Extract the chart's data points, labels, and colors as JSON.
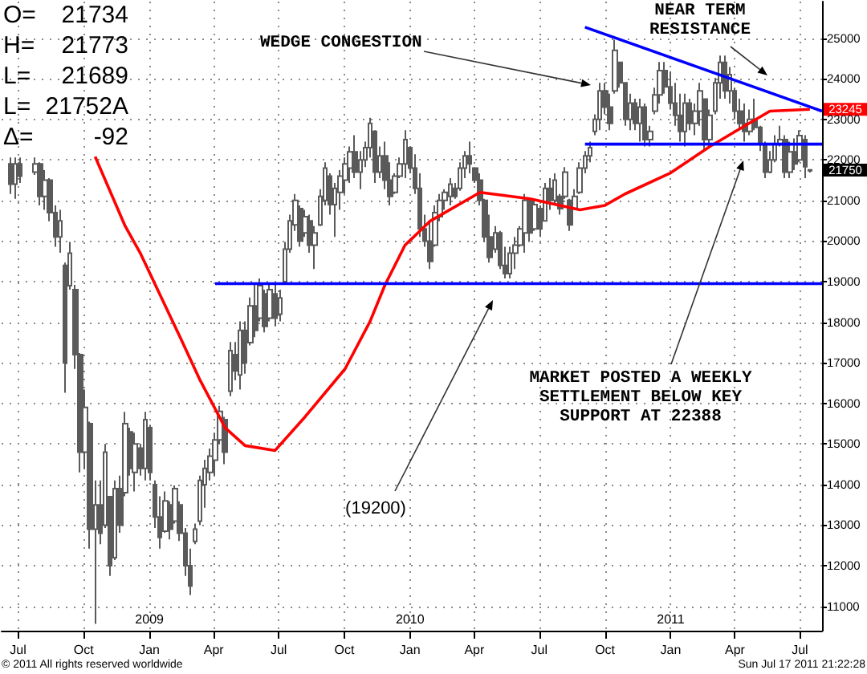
{
  "chart_data": {
    "type": "candlestick",
    "color": "#5a5a5a",
    "x": [
      "2008-06-20",
      "2008-06-27",
      "2008-07-04",
      "2008-07-25",
      "2008-08-01",
      "2008-08-08",
      "2008-08-15",
      "2008-08-22",
      "2008-08-29",
      "2008-09-05",
      "2008-09-12",
      "2008-09-19",
      "2008-09-26",
      "2008-10-03",
      "2008-10-10",
      "2008-10-17",
      "2008-10-24",
      "2008-10-31",
      "2008-11-07",
      "2008-11-14",
      "2008-11-21",
      "2008-11-28",
      "2008-12-05",
      "2008-12-12",
      "2008-12-19",
      "2008-12-26",
      "2009-01-02",
      "2009-01-09",
      "2009-01-16",
      "2009-01-23",
      "2009-01-30",
      "2009-02-06",
      "2009-02-13",
      "2009-02-20",
      "2009-02-27",
      "2009-03-06",
      "2009-03-13",
      "2009-03-20",
      "2009-03-27",
      "2009-04-03",
      "2009-04-10",
      "2009-04-17",
      "2009-04-24",
      "2009-05-01",
      "2009-05-08",
      "2009-05-15",
      "2009-05-22",
      "2009-05-29",
      "2009-06-05",
      "2009-06-12",
      "2009-06-19",
      "2009-06-26",
      "2009-07-03",
      "2009-07-10",
      "2009-07-17",
      "2009-07-24",
      "2009-07-31",
      "2009-08-07",
      "2009-08-14",
      "2009-08-21",
      "2009-08-28",
      "2009-09-04",
      "2009-09-11",
      "2009-09-18",
      "2009-09-25",
      "2009-10-02",
      "2009-10-09",
      "2009-10-16",
      "2009-10-23",
      "2009-10-30",
      "2009-11-06",
      "2009-11-13",
      "2009-11-20",
      "2009-11-27",
      "2009-12-04",
      "2009-12-11",
      "2009-12-18",
      "2009-12-25",
      "2010-01-01",
      "2010-01-08",
      "2010-01-15",
      "2010-01-22",
      "2010-01-29",
      "2010-02-05",
      "2010-02-12",
      "2010-02-19",
      "2010-02-26",
      "2010-03-05",
      "2010-03-12",
      "2010-03-19",
      "2010-03-26",
      "2010-04-02",
      "2010-04-09",
      "2010-04-16",
      "2010-04-23",
      "2010-04-30",
      "2010-05-07",
      "2010-05-14",
      "2010-05-21",
      "2010-05-28",
      "2010-06-04",
      "2010-06-11",
      "2010-06-18",
      "2010-06-25",
      "2010-07-02",
      "2010-07-09",
      "2010-07-16",
      "2010-07-23",
      "2010-07-30",
      "2010-08-06",
      "2010-08-13",
      "2010-08-20",
      "2010-08-27",
      "2010-09-03",
      "2010-09-10",
      "2010-09-17",
      "2010-09-24",
      "2010-10-01",
      "2010-10-08",
      "2010-10-15",
      "2010-10-22",
      "2010-10-29",
      "2010-11-05",
      "2010-11-12",
      "2010-11-19",
      "2010-11-26",
      "2010-12-03",
      "2010-12-10",
      "2010-12-17",
      "2010-12-24",
      "2010-12-31",
      "2011-01-07",
      "2011-01-14",
      "2011-01-21",
      "2011-01-28",
      "2011-02-04",
      "2011-02-11",
      "2011-02-18",
      "2011-02-25",
      "2011-03-04",
      "2011-03-11",
      "2011-03-18",
      "2011-03-25",
      "2011-04-01",
      "2011-04-08",
      "2011-04-15",
      "2011-04-22",
      "2011-04-29",
      "2011-05-06",
      "2011-05-13",
      "2011-05-20",
      "2011-05-27",
      "2011-06-03",
      "2011-06-10",
      "2011-06-17",
      "2011-06-24",
      "2011-07-01",
      "2011-07-08",
      "2011-07-15"
    ],
    "ohlc": [
      [
        21900,
        22060,
        21160,
        21400
      ],
      [
        21400,
        22060,
        21040,
        21900
      ],
      [
        21900,
        22060,
        21430,
        21600
      ],
      [
        21700,
        22060,
        21630,
        21900
      ],
      [
        21900,
        21940,
        20880,
        21100
      ],
      [
        21100,
        21750,
        20770,
        21500
      ],
      [
        21500,
        21550,
        20490,
        20700
      ],
      [
        20700,
        20880,
        19860,
        20100
      ],
      [
        20100,
        20770,
        19710,
        20500
      ],
      [
        19400,
        19470,
        16260,
        17000
      ],
      [
        18900,
        19980,
        18800,
        19700
      ],
      [
        18800,
        18920,
        16850,
        17200
      ],
      [
        17200,
        17240,
        14300,
        14800
      ],
      [
        14800,
        16340,
        14380,
        15900
      ],
      [
        15500,
        15550,
        12420,
        12900
      ],
      [
        12900,
        14100,
        10570,
        13500
      ],
      [
        13500,
        14100,
        12530,
        12800
      ],
      [
        13000,
        15000,
        12930,
        14800
      ],
      [
        13700,
        13710,
        11750,
        12000
      ],
      [
        12200,
        14100,
        12140,
        13900
      ],
      [
        13900,
        14220,
        12810,
        13000
      ],
      [
        13800,
        15790,
        13710,
        15500
      ],
      [
        15300,
        15400,
        14220,
        14400
      ],
      [
        14300,
        15280,
        13830,
        15000
      ],
      [
        14900,
        15000,
        14220,
        14400
      ],
      [
        14400,
        15790,
        14100,
        15600
      ],
      [
        15400,
        15470,
        14100,
        14300
      ],
      [
        14000,
        14100,
        12930,
        13200
      ],
      [
        13200,
        13710,
        12420,
        12700
      ],
      [
        12850,
        13830,
        12810,
        13600
      ],
      [
        13500,
        13590,
        12650,
        12900
      ],
      [
        13100,
        13980,
        13040,
        13900
      ],
      [
        13500,
        13590,
        12610,
        12800
      ],
      [
        12800,
        12930,
        11750,
        12000
      ],
      [
        12000,
        12420,
        11280,
        11500
      ],
      [
        12600,
        13040,
        12530,
        12900
      ],
      [
        13100,
        14220,
        13000,
        14100
      ],
      [
        14000,
        14610,
        13430,
        14400
      ],
      [
        14300,
        14890,
        14100,
        14700
      ],
      [
        14600,
        15280,
        14220,
        15100
      ],
      [
        15100,
        15940,
        15000,
        15800
      ],
      [
        15600,
        15670,
        14500,
        14800
      ],
      [
        16300,
        17510,
        16180,
        17300
      ],
      [
        17200,
        17510,
        16570,
        16800
      ],
      [
        16700,
        18020,
        16340,
        17800
      ],
      [
        17800,
        18020,
        16730,
        17000
      ],
      [
        17500,
        18610,
        17430,
        18400
      ],
      [
        18400,
        18920,
        17630,
        17800
      ],
      [
        18100,
        19080,
        18020,
        18900
      ],
      [
        18700,
        18800,
        17750,
        17900
      ],
      [
        18100,
        18920,
        18020,
        18800
      ],
      [
        18700,
        18920,
        17900,
        18100
      ],
      [
        18200,
        18800,
        18020,
        18600
      ],
      [
        19000,
        19980,
        18920,
        19800
      ],
      [
        19800,
        20650,
        19710,
        20500
      ],
      [
        20400,
        21160,
        20250,
        21000
      ],
      [
        20800,
        20880,
        19860,
        20000
      ],
      [
        20200,
        20770,
        20100,
        20600
      ],
      [
        20500,
        20650,
        19710,
        19900
      ],
      [
        19900,
        20370,
        19310,
        20200
      ],
      [
        20400,
        21280,
        20370,
        21100
      ],
      [
        21000,
        21940,
        20880,
        21800
      ],
      [
        21600,
        21670,
        20650,
        20900
      ],
      [
        20900,
        21430,
        20100,
        21300
      ],
      [
        21200,
        21750,
        20770,
        21600
      ],
      [
        21500,
        22060,
        21160,
        21900
      ],
      [
        21800,
        22330,
        21430,
        22200
      ],
      [
        22200,
        22610,
        21550,
        21700
      ],
      [
        21700,
        22220,
        21280,
        22000
      ],
      [
        22000,
        22450,
        21820,
        22300
      ],
      [
        22300,
        23040,
        22060,
        22900
      ],
      [
        22700,
        22730,
        21430,
        21700
      ],
      [
        21700,
        22330,
        21550,
        22100
      ],
      [
        22100,
        22450,
        21280,
        21500
      ],
      [
        21500,
        21940,
        20880,
        21100
      ],
      [
        21200,
        21670,
        21160,
        21600
      ],
      [
        21600,
        22060,
        21550,
        21900
      ],
      [
        21900,
        22730,
        21550,
        22500
      ],
      [
        22300,
        22330,
        21670,
        21800
      ],
      [
        21800,
        22140,
        21160,
        21300
      ],
      [
        21300,
        21670,
        20100,
        20300
      ],
      [
        20300,
        20650,
        19860,
        20000
      ],
      [
        20000,
        20490,
        19310,
        19500
      ],
      [
        19900,
        20880,
        19860,
        20700
      ],
      [
        20600,
        21160,
        20490,
        21000
      ],
      [
        21000,
        21280,
        20770,
        21200
      ],
      [
        21100,
        21550,
        20880,
        21400
      ],
      [
        21300,
        21430,
        21040,
        21100
      ],
      [
        21300,
        21940,
        21240,
        21800
      ],
      [
        21800,
        22220,
        21550,
        22100
      ],
      [
        22100,
        22450,
        21670,
        21900
      ],
      [
        21800,
        21820,
        21430,
        21500
      ],
      [
        21500,
        21670,
        20880,
        21000
      ],
      [
        21000,
        21040,
        19980,
        20100
      ],
      [
        20100,
        20650,
        19470,
        19600
      ],
      [
        19800,
        20370,
        19710,
        20200
      ],
      [
        20200,
        20250,
        19310,
        19400
      ],
      [
        19400,
        19860,
        19080,
        19200
      ],
      [
        19200,
        19860,
        19080,
        19700
      ],
      [
        19700,
        20100,
        19310,
        19900
      ],
      [
        19900,
        20370,
        19860,
        20300
      ],
      [
        20200,
        21160,
        19710,
        21000
      ],
      [
        21000,
        21040,
        19980,
        20200
      ],
      [
        20300,
        21040,
        20250,
        20900
      ],
      [
        20800,
        20880,
        20100,
        20300
      ],
      [
        20500,
        21430,
        20490,
        21300
      ],
      [
        21300,
        21550,
        20770,
        21000
      ],
      [
        21000,
        21670,
        20880,
        21500
      ],
      [
        21100,
        21160,
        20650,
        20800
      ],
      [
        21100,
        21820,
        21040,
        21700
      ],
      [
        21000,
        21040,
        20250,
        20400
      ],
      [
        20800,
        21280,
        20770,
        21100
      ],
      [
        21200,
        21940,
        21160,
        21800
      ],
      [
        21800,
        22220,
        21670,
        22100
      ],
      [
        22100,
        22450,
        21940,
        22300
      ],
      [
        22700,
        23120,
        22610,
        23000
      ],
      [
        23000,
        23900,
        22730,
        23700
      ],
      [
        23700,
        23900,
        23120,
        23300
      ],
      [
        23300,
        23630,
        22730,
        22900
      ],
      [
        23700,
        24960,
        23630,
        24700
      ],
      [
        24400,
        24410,
        23780,
        23900
      ],
      [
        23900,
        23900,
        22840,
        23000
      ],
      [
        23000,
        23630,
        22730,
        23400
      ],
      [
        23400,
        23510,
        22730,
        22900
      ],
      [
        22900,
        23510,
        22450,
        23300
      ],
      [
        23300,
        23390,
        22330,
        22500
      ],
      [
        22500,
        22840,
        22330,
        22700
      ],
      [
        23200,
        23780,
        23120,
        23600
      ],
      [
        23600,
        24410,
        23390,
        24200
      ],
      [
        24200,
        24410,
        23630,
        23800
      ],
      [
        23800,
        24180,
        23240,
        23400
      ],
      [
        23400,
        23900,
        22840,
        23100
      ],
      [
        23100,
        23630,
        22450,
        22700
      ],
      [
        22700,
        23630,
        22330,
        23400
      ],
      [
        23400,
        23510,
        22730,
        22900
      ],
      [
        22900,
        23390,
        22610,
        23200
      ],
      [
        23200,
        23900,
        22840,
        23700
      ],
      [
        23500,
        23510,
        22220,
        22500
      ],
      [
        22500,
        23240,
        22330,
        23100
      ],
      [
        23200,
        24020,
        23120,
        23900
      ],
      [
        23900,
        24570,
        23510,
        24400
      ],
      [
        24400,
        24570,
        23510,
        23700
      ],
      [
        23700,
        24290,
        23390,
        24100
      ],
      [
        23700,
        23780,
        23000,
        23200
      ],
      [
        23200,
        23510,
        22730,
        22900
      ],
      [
        22900,
        23390,
        22450,
        22700
      ],
      [
        22700,
        23240,
        22610,
        23000
      ],
      [
        23000,
        23510,
        22730,
        22800
      ],
      [
        22800,
        22840,
        22220,
        22400
      ],
      [
        22400,
        22450,
        21550,
        21700
      ],
      [
        21700,
        22220,
        21670,
        22000
      ],
      [
        22000,
        22610,
        21940,
        22400
      ],
      [
        22400,
        22840,
        22330,
        22500
      ],
      [
        22500,
        22610,
        21550,
        21700
      ],
      [
        21700,
        22450,
        21550,
        22200
      ],
      [
        22200,
        22530,
        21750,
        21900
      ],
      [
        22000,
        22730,
        21940,
        22600
      ],
      [
        22500,
        22610,
        21550,
        21830
      ],
      [
        21734,
        21773,
        21689,
        21752
      ]
    ],
    "series": [
      {
        "type": "line",
        "color": "#ff0000",
        "x": [
          "2008-10-17",
          "2008-11-28",
          "2008-12-19",
          "2009-02-13",
          "2009-03-13",
          "2009-04-17",
          "2009-05-15",
          "2009-06-26",
          "2009-08-07",
          "2009-10-02",
          "2009-11-06",
          "2009-11-27",
          "2009-12-25",
          "2010-01-22",
          "2010-01-29",
          "2010-04-09",
          "2010-06-18",
          "2010-08-27",
          "2010-10-01",
          "2010-10-29",
          "2010-12-31",
          "2011-02-25",
          "2011-04-15",
          "2011-05-20",
          "2011-07-15"
        ],
        "values": [
          22080,
          20370,
          19710,
          17630,
          16570,
          15400,
          14960,
          14840,
          15670,
          16850,
          18020,
          18920,
          19900,
          20370,
          20490,
          21200,
          21040,
          20770,
          20880,
          21160,
          21670,
          22330,
          22840,
          23200,
          23245
        ]
      },
      {
        "type": "line",
        "color": "#0000ff",
        "x": [
          "2009-04-03",
          "2011-08-01"
        ],
        "values": [
          18950,
          18950
        ]
      },
      {
        "type": "line",
        "color": "#0000ff",
        "x": [
          "2010-09-03",
          "2011-08-01"
        ],
        "values": [
          22388,
          22388
        ]
      },
      {
        "type": "line",
        "color": "#0000ff",
        "x": [
          "2010-09-03",
          "2011-08-01"
        ],
        "values": [
          25270,
          23200
        ]
      }
    ],
    "xlim": [
      "2008-06-08",
      "2011-08-01"
    ],
    "ylim": [
      10400,
      25900
    ],
    "xticks": [
      {
        "value": "2008-07-01",
        "label": "Jul"
      },
      {
        "value": "2008-10-01",
        "label": "Oct"
      },
      {
        "value": "2009-01-01",
        "label": "Jan"
      },
      {
        "value": "2009-04-01",
        "label": "Apr"
      },
      {
        "value": "2009-07-01",
        "label": "Jul"
      },
      {
        "value": "2009-10-01",
        "label": "Oct"
      },
      {
        "value": "2010-01-01",
        "label": "Jan"
      },
      {
        "value": "2010-04-01",
        "label": "Apr"
      },
      {
        "value": "2010-07-01",
        "label": "Jul"
      },
      {
        "value": "2010-10-01",
        "label": "Oct"
      },
      {
        "value": "2011-01-01",
        "label": "Jan"
      },
      {
        "value": "2011-04-01",
        "label": "Apr"
      },
      {
        "value": "2011-07-01",
        "label": "Jul"
      }
    ],
    "x2lim": [
      "2008-06-08",
      "2011-08-01"
    ],
    "x2ticks": [
      {
        "value": "2009-01-01",
        "label": "2009"
      },
      {
        "value": "2010-01-01",
        "label": "2010"
      },
      {
        "value": "2011-01-01",
        "label": "2011"
      }
    ],
    "yticks": [
      11000,
      12000,
      13000,
      14000,
      15000,
      16000,
      17000,
      18000,
      19000,
      20000,
      21000,
      22000,
      23000,
      24000,
      25000
    ],
    "grid": true,
    "annotations": [
      "O= 21734",
      "H= 21773",
      "L= 21689",
      "L= 21752A",
      "Δ= -92",
      "WEDGE CONGESTION",
      "NEAR TERM\nRESISTANCE",
      "(19200)",
      "MARKET POSTED A WEEKLY\nSETTLEMENT BELOW KEY\nSUPPORT AT 22388",
      {
        "text": "23245",
        "x": "2011-07-15",
        "y": 23245
      },
      {
        "text": "21750",
        "x": "2011-07-15",
        "y": 21750
      },
      "© 2011 All rights reserved worldwide",
      "Sun Jul 17 2011 21:22:28"
    ]
  }
}
